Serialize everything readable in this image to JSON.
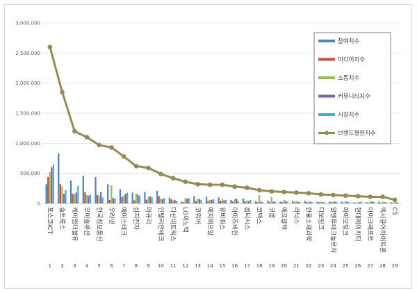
{
  "chart_data": {
    "type": "bar",
    "title": "",
    "xlabel": "",
    "ylabel": "",
    "ylim": [
      0,
      3000000
    ],
    "y_ticks": [
      "0",
      "500,000",
      "1,000,000",
      "1,500,000",
      "2,000,000",
      "2,500,000",
      "3,000,000"
    ],
    "y_tick_values": [
      0,
      500000,
      1000000,
      1500000,
      2000000,
      2500000,
      3000000
    ],
    "grid": true,
    "legend_position": "top-right",
    "categories": [
      "포스코ICT",
      "솔트룩스",
      "케이엠더블유",
      "오이솔루션",
      "한국정보통신",
      "우리넷",
      "에이스테크",
      "삼지전자",
      "머큐리",
      "인텔리안테크",
      "다산네트웍스",
      "LG이노텍",
      "코위버",
      "에치에프알",
      "유비쿼스",
      "아이즈비전",
      "옵티시스",
      "코맥스",
      "코콤",
      "에프알텍",
      "라닉스",
      "한울소재과학",
      "다보링크",
      "알엔투테크놀로지",
      "파이오링크",
      "현대에이치티",
      "아이크래프트",
      "엑시큐어하이트론",
      "CS"
    ],
    "category_display": [
      "포스코ICT",
      "솔트룩스",
      "케이엠더블유",
      "오이솔루션",
      "한국정보통신",
      "우리넷",
      "에이스테크",
      "삼지전자",
      "머큐리",
      "인텔리안테크",
      "다산네트웍스",
      "LG이노텍",
      "코위버",
      "에치에프알",
      "유비쿼스",
      "아이즈비전",
      "옵티시스",
      "코맥스",
      "코콤",
      "에프알텍",
      "라닉스",
      "한울소재과학",
      "다보링크",
      "알엔투테크놀로지",
      "파이오링크",
      "현대에이치티",
      "아이크래프트",
      "엑시큐어하이트론",
      "CS"
    ],
    "x_numbers": [
      "1",
      "2",
      "3",
      "4",
      "5",
      "6",
      "7",
      "8",
      "9",
      "10",
      "11",
      "12",
      "13",
      "14",
      "15",
      "16",
      "17",
      "18",
      "19",
      "20",
      "21",
      "22",
      "23",
      "24",
      "25",
      "26",
      "27",
      "28",
      "29"
    ],
    "series": [
      {
        "name": "참여지수",
        "type": "bar",
        "color": "#4f81bd",
        "values": [
          320000,
          830000,
          380000,
          460000,
          440000,
          320000,
          240000,
          180000,
          190000,
          210000,
          100000,
          30000,
          120000,
          110000,
          100000,
          60000,
          80000,
          40000,
          50000,
          30000,
          40000,
          40000,
          30000,
          30000,
          30000,
          20000,
          20000,
          30000,
          20000
        ]
      },
      {
        "name": "미디어지수",
        "type": "bar",
        "color": "#c0504d",
        "values": [
          440000,
          320000,
          160000,
          190000,
          140000,
          60000,
          110000,
          50000,
          60000,
          120000,
          70000,
          20000,
          40000,
          40000,
          40000,
          30000,
          30000,
          20000,
          20000,
          20000,
          20000,
          20000,
          20000,
          20000,
          10000,
          10000,
          10000,
          10000,
          10000
        ]
      },
      {
        "name": "소통지수",
        "type": "bar",
        "color": "#9bbb59",
        "values": [
          520000,
          280000,
          160000,
          140000,
          130000,
          300000,
          130000,
          160000,
          110000,
          80000,
          50000,
          90000,
          80000,
          60000,
          80000,
          70000,
          50000,
          140000,
          110000,
          60000,
          40000,
          30000,
          30000,
          30000,
          40000,
          20000,
          40000,
          30000,
          20000
        ]
      },
      {
        "name": "커뮤니티지수",
        "type": "bar",
        "color": "#8064a2",
        "values": [
          600000,
          160000,
          180000,
          130000,
          190000,
          90000,
          160000,
          150000,
          120000,
          70000,
          60000,
          80000,
          70000,
          60000,
          50000,
          80000,
          40000,
          30000,
          30000,
          40000,
          30000,
          30000,
          20000,
          30000,
          30000,
          20000,
          30000,
          20000,
          20000
        ]
      },
      {
        "name": "시장지수",
        "type": "bar",
        "color": "#4bacc6",
        "values": [
          650000,
          220000,
          290000,
          150000,
          100000,
          80000,
          180000,
          130000,
          100000,
          90000,
          40000,
          90000,
          60000,
          70000,
          60000,
          40000,
          60000,
          20000,
          30000,
          30000,
          20000,
          20000,
          20000,
          20000,
          20000,
          30000,
          30000,
          20000,
          10000
        ]
      },
      {
        "name": "브랜드평판지수",
        "type": "line",
        "color": "#948a54",
        "values": [
          2600000,
          1850000,
          1200000,
          1100000,
          970000,
          930000,
          780000,
          620000,
          590000,
          490000,
          420000,
          360000,
          320000,
          310000,
          310000,
          280000,
          260000,
          220000,
          200000,
          190000,
          180000,
          170000,
          150000,
          140000,
          130000,
          120000,
          110000,
          110000,
          60000
        ]
      }
    ]
  }
}
